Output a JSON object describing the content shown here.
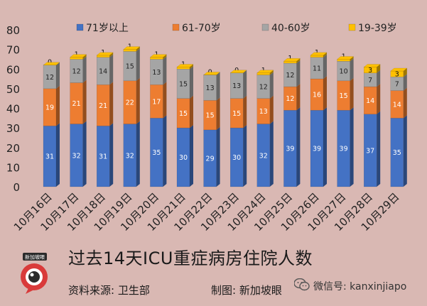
{
  "chart_data": {
    "type": "bar",
    "stacked": true,
    "categories": [
      "10月16日",
      "10月17日",
      "10月18日",
      "10月19日",
      "10月20日",
      "10月21日",
      "10月22日",
      "10月23日",
      "10月24日",
      "10月25日",
      "10月26日",
      "10月27日",
      "10月28日",
      "10月29日"
    ],
    "series": [
      {
        "name": "71岁以上",
        "color": "#4472c4",
        "values": [
          31,
          32,
          31,
          32,
          35,
          30,
          29,
          30,
          32,
          39,
          39,
          39,
          37,
          35
        ]
      },
      {
        "name": "61-70岁",
        "color": "#ed7d31",
        "values": [
          19,
          21,
          21,
          22,
          17,
          15,
          15,
          15,
          13,
          12,
          16,
          15,
          14,
          14
        ]
      },
      {
        "name": "40-60岁",
        "color": "#a5a5a5",
        "values": [
          12,
          12,
          14,
          15,
          13,
          15,
          13,
          13,
          12,
          12,
          11,
          10,
          7,
          7
        ]
      },
      {
        "name": "19-39岁",
        "color": "#ffc000",
        "values": [
          0,
          1,
          1,
          1,
          1,
          1,
          0,
          0,
          1,
          1,
          1,
          1,
          3,
          3
        ]
      }
    ],
    "ylim": [
      0,
      80
    ],
    "yticks": [
      0,
      10,
      20,
      30,
      40,
      50,
      60,
      70,
      80
    ],
    "legend_position": "top",
    "grid": false
  },
  "footer": {
    "title": "过去14天ICU重症病房住院人数",
    "source": "资料来源:  卫生部",
    "credit": "制图:  新加坡眼",
    "logo_text": "新加坡眼",
    "wechat": "微信号: kanxinjiapo"
  }
}
